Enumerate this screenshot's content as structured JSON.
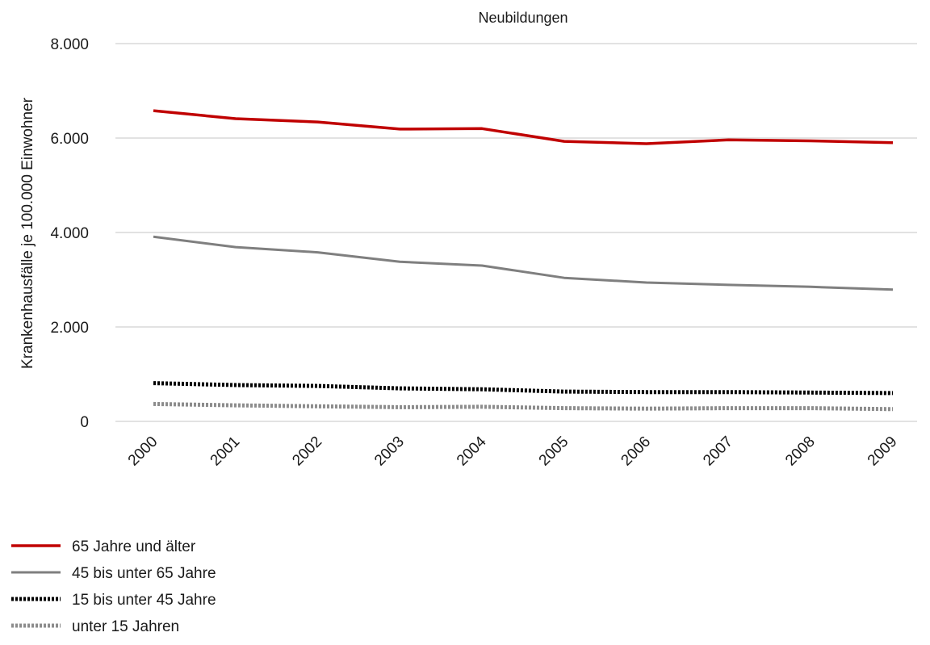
{
  "chart_data": {
    "type": "line",
    "title": "Neubildungen",
    "xlabel": "",
    "ylabel": "Krankenhausfälle je 100.000 Einwohner",
    "x": [
      "2000",
      "2001",
      "2002",
      "2003",
      "2004",
      "2005",
      "2006",
      "2007",
      "2008",
      "2009"
    ],
    "ylim": [
      0,
      8000
    ],
    "yticks": [
      0,
      2000,
      4000,
      6000,
      8000
    ],
    "ytick_labels": [
      "0",
      "2.000",
      "4.000",
      "6.000",
      "8.000"
    ],
    "grid": true,
    "legend_position": "bottom-left",
    "series": [
      {
        "name": "65 Jahre und älter",
        "color": "#c00000",
        "style": "solid",
        "values": [
          6580,
          6410,
          6340,
          6190,
          6200,
          5930,
          5880,
          5960,
          5940,
          5900
        ]
      },
      {
        "name": "45 bis unter 65 Jahre",
        "color": "#7f7f7f",
        "style": "solid",
        "values": [
          3910,
          3690,
          3580,
          3380,
          3300,
          3040,
          2940,
          2890,
          2850,
          2790
        ]
      },
      {
        "name": "15 bis unter 45 Jahre",
        "color": "#000000",
        "style": "dotted",
        "values": [
          810,
          770,
          750,
          700,
          680,
          630,
          620,
          620,
          610,
          600
        ]
      },
      {
        "name": "unter 15 Jahren",
        "color": "#8c8c8c",
        "style": "dotted",
        "values": [
          370,
          340,
          320,
          300,
          310,
          280,
          270,
          280,
          280,
          260
        ]
      }
    ]
  }
}
